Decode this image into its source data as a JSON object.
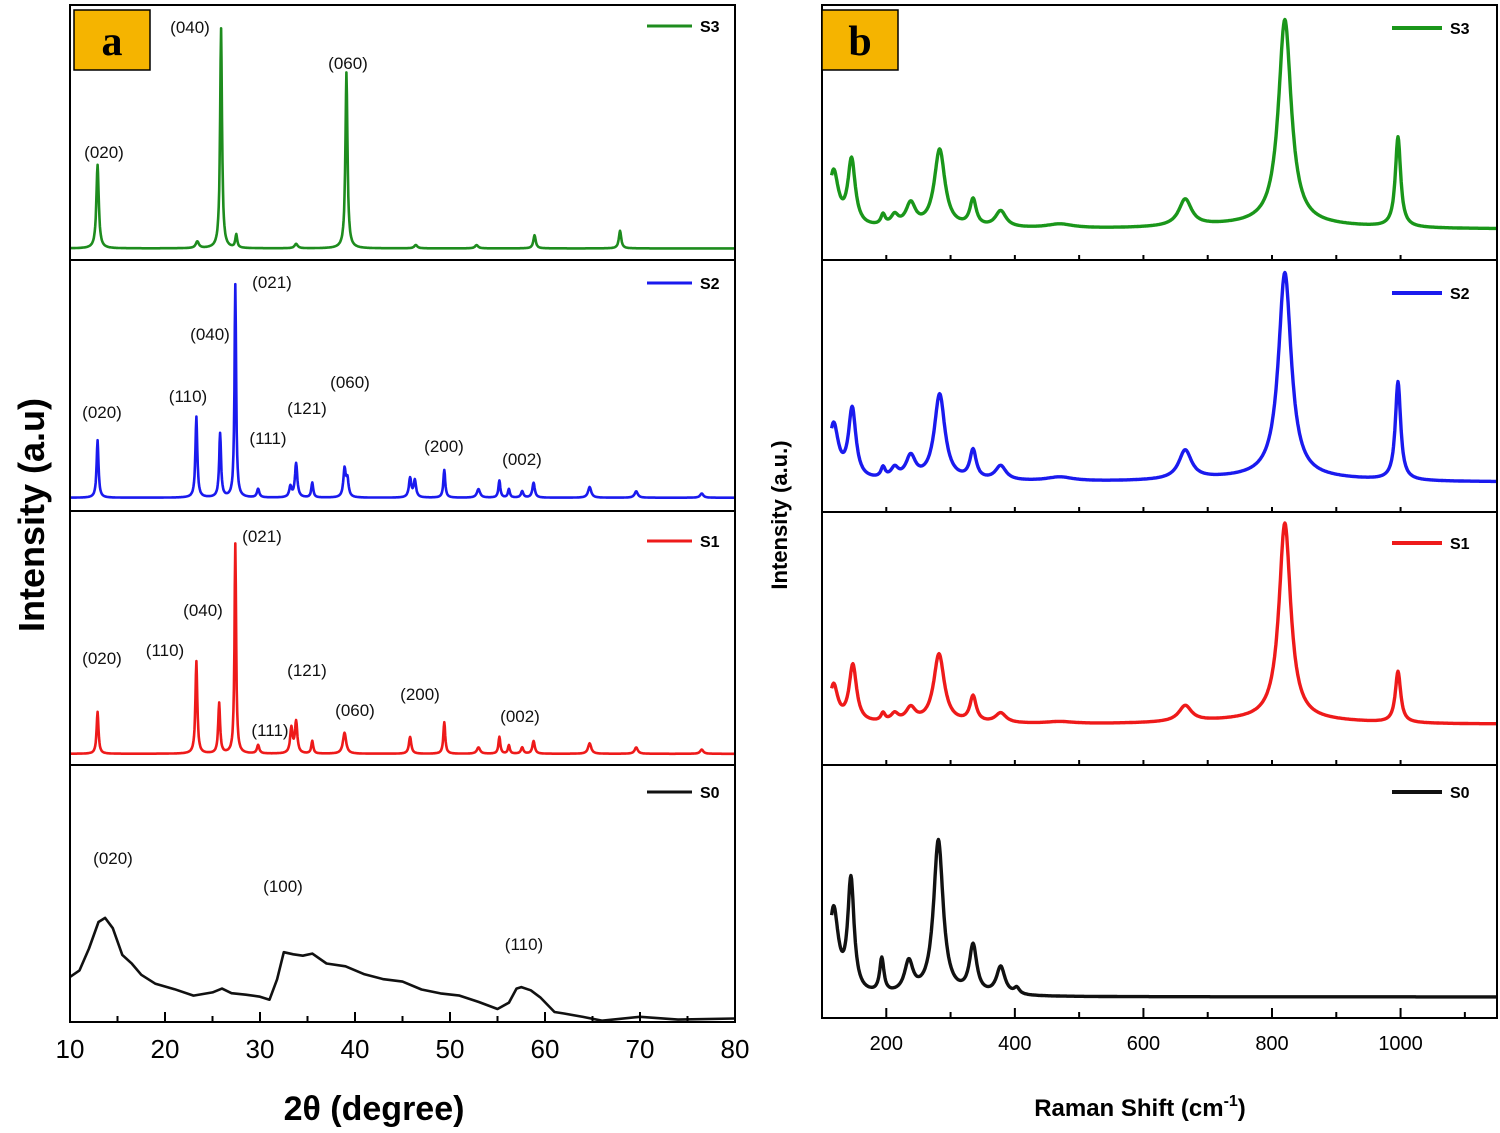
{
  "chart_data": [
    {
      "panel_label": "a",
      "type": "line",
      "xlabel": "2θ (degree)",
      "ylabel": "Intensity (a.u)",
      "xlim": [
        10,
        80
      ],
      "xticks": [
        "10",
        "20",
        "30",
        "40",
        "50",
        "60",
        "70",
        "80"
      ],
      "series": [
        {
          "name": "S3",
          "color": "#1e8c1e",
          "baseline": 0.03,
          "peaks": [
            [
              12.9,
              0.38,
              0.15
            ],
            [
              23.4,
              0.03,
              0.2
            ],
            [
              25.9,
              1.0,
              0.12
            ],
            [
              27.5,
              0.06,
              0.12
            ],
            [
              33.8,
              0.02,
              0.2
            ],
            [
              39.1,
              0.8,
              0.13
            ],
            [
              46.4,
              0.015,
              0.2
            ],
            [
              52.8,
              0.015,
              0.2
            ],
            [
              58.9,
              0.06,
              0.15
            ],
            [
              67.9,
              0.08,
              0.15
            ]
          ],
          "labels": [
            {
              "text": "(020)",
              "x": 12.9
            },
            {
              "text": "(040)",
              "x": 25.9
            },
            {
              "text": "(060)",
              "x": 39.1
            }
          ]
        },
        {
          "name": "S2",
          "color": "#1a1aee",
          "baseline": 0.02,
          "peaks": [
            [
              12.9,
              0.27,
              0.12
            ],
            [
              23.3,
              0.38,
              0.12
            ],
            [
              25.8,
              0.3,
              0.12
            ],
            [
              27.4,
              1.0,
              0.1
            ],
            [
              29.8,
              0.04,
              0.15
            ],
            [
              33.2,
              0.05,
              0.15
            ],
            [
              33.8,
              0.16,
              0.15
            ],
            [
              35.5,
              0.07,
              0.12
            ],
            [
              38.9,
              0.13,
              0.15
            ],
            [
              39.2,
              0.08,
              0.15
            ],
            [
              45.8,
              0.09,
              0.15
            ],
            [
              46.3,
              0.08,
              0.15
            ],
            [
              49.4,
              0.13,
              0.12
            ],
            [
              53.0,
              0.04,
              0.2
            ],
            [
              55.2,
              0.08,
              0.12
            ],
            [
              56.2,
              0.04,
              0.12
            ],
            [
              57.6,
              0.03,
              0.15
            ],
            [
              58.8,
              0.07,
              0.15
            ],
            [
              64.7,
              0.05,
              0.2
            ],
            [
              69.6,
              0.03,
              0.2
            ],
            [
              76.5,
              0.02,
              0.2
            ]
          ],
          "labels": [
            {
              "text": "(020)",
              "x": 12.9
            },
            {
              "text": "(110)",
              "x": 23.3
            },
            {
              "text": "(040)",
              "x": 25.8
            },
            {
              "text": "(021)",
              "x": 27.4
            },
            {
              "text": "(111)",
              "x": 29.8
            },
            {
              "text": "(121)",
              "x": 33.8
            },
            {
              "text": "(060)",
              "x": 39.1
            },
            {
              "text": "(200)",
              "x": 49.4
            },
            {
              "text": "(002)",
              "x": 55.2
            }
          ]
        },
        {
          "name": "S1",
          "color": "#ee1a1a",
          "baseline": 0.02,
          "peaks": [
            [
              12.9,
              0.2,
              0.12
            ],
            [
              23.3,
              0.44,
              0.12
            ],
            [
              25.7,
              0.24,
              0.12
            ],
            [
              27.4,
              1.0,
              0.1
            ],
            [
              29.8,
              0.04,
              0.15
            ],
            [
              33.3,
              0.12,
              0.15
            ],
            [
              33.8,
              0.15,
              0.15
            ],
            [
              35.5,
              0.06,
              0.12
            ],
            [
              38.9,
              0.1,
              0.2
            ],
            [
              45.8,
              0.08,
              0.15
            ],
            [
              49.4,
              0.15,
              0.12
            ],
            [
              53.0,
              0.03,
              0.2
            ],
            [
              55.2,
              0.08,
              0.12
            ],
            [
              56.2,
              0.04,
              0.12
            ],
            [
              57.6,
              0.03,
              0.15
            ],
            [
              58.8,
              0.06,
              0.15
            ],
            [
              64.7,
              0.05,
              0.2
            ],
            [
              69.6,
              0.03,
              0.2
            ],
            [
              76.5,
              0.02,
              0.2
            ]
          ],
          "labels": [
            {
              "text": "(020)",
              "x": 12.9
            },
            {
              "text": "(110)",
              "x": 23.3
            },
            {
              "text": "(040)",
              "x": 25.7
            },
            {
              "text": "(021)",
              "x": 27.4
            },
            {
              "text": "(111)",
              "x": 29.8
            },
            {
              "text": "(121)",
              "x": 33.8
            },
            {
              "text": "(060)",
              "x": 38.9
            },
            {
              "text": "(200)",
              "x": 49.4
            },
            {
              "text": "(002)",
              "x": 55.2
            }
          ]
        },
        {
          "name": "S0",
          "color": "#111111",
          "baseline": 0.0,
          "points": [
            [
              10,
              0.3
            ],
            [
              11,
              0.35
            ],
            [
              12,
              0.5
            ],
            [
              13,
              0.68
            ],
            [
              13.7,
              0.72
            ],
            [
              14.5,
              0.65
            ],
            [
              15.5,
              0.45
            ],
            [
              16.5,
              0.38
            ],
            [
              17.5,
              0.3
            ],
            [
              19,
              0.24
            ],
            [
              21,
              0.2
            ],
            [
              23,
              0.17
            ],
            [
              25,
              0.18
            ],
            [
              26,
              0.2
            ],
            [
              27,
              0.17
            ],
            [
              28.5,
              0.16
            ],
            [
              30,
              0.16
            ],
            [
              31,
              0.13
            ],
            [
              31.8,
              0.28
            ],
            [
              32.5,
              0.48
            ],
            [
              33.5,
              0.46
            ],
            [
              34.5,
              0.44
            ],
            [
              35.5,
              0.45
            ],
            [
              37,
              0.39
            ],
            [
              39,
              0.36
            ],
            [
              41,
              0.32
            ],
            [
              43,
              0.28
            ],
            [
              45,
              0.25
            ],
            [
              47,
              0.21
            ],
            [
              49,
              0.18
            ],
            [
              51,
              0.15
            ],
            [
              53,
              0.12
            ],
            [
              55,
              0.07
            ],
            [
              56.2,
              0.1
            ],
            [
              57,
              0.2
            ],
            [
              57.5,
              0.23
            ],
            [
              58.5,
              0.2
            ],
            [
              59.5,
              0.14
            ],
            [
              61,
              0.05
            ],
            [
              62,
              0.03
            ],
            [
              64,
              0.0
            ],
            [
              66,
              -0.01
            ],
            [
              70,
              0.0
            ],
            [
              74,
              -0.01
            ],
            [
              80,
              0.0
            ]
          ],
          "labels": [
            {
              "text": "(020)",
              "x": 13.9
            },
            {
              "text": "(100)",
              "x": 32.8
            },
            {
              "text": "(110)",
              "x": 57.5
            }
          ]
        }
      ]
    },
    {
      "panel_label": "b",
      "type": "line",
      "xlabel": "Raman Shift (cm",
      "xlabel_sup": "-1",
      "xlabel_close": ")",
      "ylabel": "Intensity (a.u.)",
      "xlim": [
        100,
        1150
      ],
      "xticks": [
        "200",
        "400",
        "600",
        "800",
        "1000"
      ],
      "series": [
        {
          "name": "S3",
          "color": "#1a961a",
          "baseline": 0.03,
          "hump": 0.02,
          "peaks": [
            [
              118,
              0.27,
              9
            ],
            [
              146,
              0.32,
              7
            ],
            [
              195,
              0.05,
              4
            ],
            [
              213,
              0.05,
              7
            ],
            [
              238,
              0.11,
              9
            ],
            [
              283,
              0.38,
              10
            ],
            [
              335,
              0.13,
              6
            ],
            [
              378,
              0.08,
              10
            ],
            [
              470,
              0.02,
              25
            ],
            [
              665,
              0.13,
              12
            ],
            [
              820,
              1.0,
              12
            ],
            [
              996,
              0.44,
              5
            ]
          ]
        },
        {
          "name": "S2",
          "color": "#1a1aee",
          "baseline": 0.03,
          "hump": 0.02,
          "peaks": [
            [
              118,
              0.27,
              9
            ],
            [
              147,
              0.34,
              7
            ],
            [
              195,
              0.05,
              4
            ],
            [
              213,
              0.05,
              7
            ],
            [
              238,
              0.11,
              9
            ],
            [
              283,
              0.42,
              10
            ],
            [
              335,
              0.14,
              6
            ],
            [
              378,
              0.07,
              10
            ],
            [
              470,
              0.02,
              25
            ],
            [
              665,
              0.14,
              12
            ],
            [
              820,
              1.0,
              12
            ],
            [
              996,
              0.48,
              5
            ]
          ]
        },
        {
          "name": "S1",
          "color": "#ee1a1a",
          "baseline": 0.03,
          "hump": 0.02,
          "peaks": [
            [
              118,
              0.19,
              8
            ],
            [
              148,
              0.29,
              7
            ],
            [
              195,
              0.04,
              4
            ],
            [
              213,
              0.04,
              7
            ],
            [
              238,
              0.07,
              9
            ],
            [
              282,
              0.35,
              10
            ],
            [
              335,
              0.13,
              6
            ],
            [
              378,
              0.05,
              10
            ],
            [
              470,
              0.01,
              25
            ],
            [
              665,
              0.08,
              12
            ],
            [
              820,
              1.0,
              11
            ],
            [
              996,
              0.26,
              5
            ]
          ]
        },
        {
          "name": "S0",
          "color": "#111111",
          "baseline": 0.02,
          "hump": 0.0,
          "peaks": [
            [
              118,
              0.55,
              9
            ],
            [
              145,
              0.72,
              6
            ],
            [
              193,
              0.22,
              4
            ],
            [
              235,
              0.2,
              8
            ],
            [
              281,
              1.0,
              9
            ],
            [
              335,
              0.31,
              7
            ],
            [
              378,
              0.18,
              8
            ],
            [
              403,
              0.04,
              5
            ]
          ]
        }
      ]
    }
  ]
}
